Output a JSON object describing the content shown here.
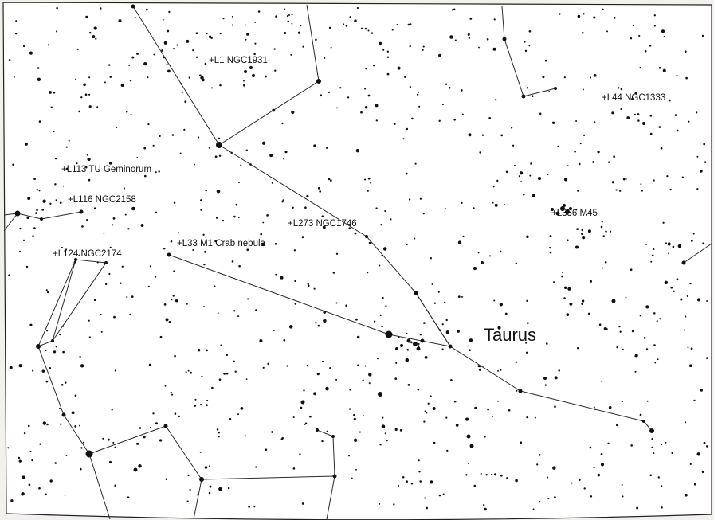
{
  "map": {
    "constellation_name": "Taurus",
    "objects": [
      {
        "id": "L1",
        "label": "+L1 NGC1931"
      },
      {
        "id": "L44",
        "label": "+L44 NGC1333"
      },
      {
        "id": "L113",
        "label": "+L113 TU Geminorum"
      },
      {
        "id": "L116",
        "label": "+L116 NGC2158"
      },
      {
        "id": "L273",
        "label": "+L273 NGC1746"
      },
      {
        "id": "L336",
        "label": "+L336 M45"
      },
      {
        "id": "L33",
        "label": "+L33 M1 Crab nebula"
      },
      {
        "id": "L124",
        "label": "+L124 NGC2174"
      }
    ]
  }
}
